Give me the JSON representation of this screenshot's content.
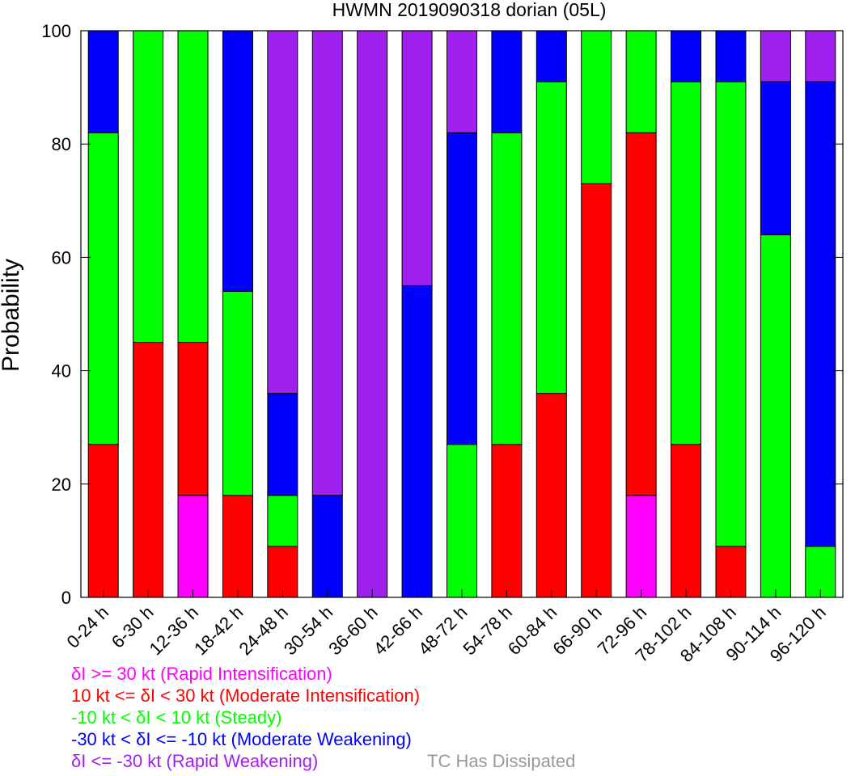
{
  "chart_data": {
    "type": "bar",
    "stacked": true,
    "title": "HWMN 2019090318 dorian (05L)",
    "ylabel": "Probability",
    "xlabel": "",
    "ylim": [
      0,
      100
    ],
    "yticks": [
      0,
      20,
      40,
      60,
      80,
      100
    ],
    "grid": false,
    "legend_position": "bottom-left",
    "categories": [
      "0-24 h",
      "6-30 h",
      "12-36 h",
      "18-42 h",
      "24-48 h",
      "30-54 h",
      "36-60 h",
      "42-66 h",
      "48-72 h",
      "54-78 h",
      "60-84 h",
      "66-90 h",
      "72-96 h",
      "78-102 h",
      "84-108 h",
      "90-114 h",
      "96-120 h"
    ],
    "series": [
      {
        "key": "ri",
        "name": "δI >= 30 kt (Rapid Intensification)",
        "color": "#ff00ff",
        "values": [
          0,
          0,
          18,
          0,
          0,
          0,
          0,
          0,
          0,
          0,
          0,
          0,
          18,
          0,
          0,
          0,
          0
        ]
      },
      {
        "key": "mi",
        "name": "10 kt <= δI < 30 kt (Moderate Intensification)",
        "color": "#ff0000",
        "values": [
          27,
          45,
          27,
          18,
          9,
          0,
          0,
          0,
          0,
          27,
          36,
          73,
          64,
          27,
          9,
          0,
          0
        ]
      },
      {
        "key": "st",
        "name": "-10 kt < δI < 10 kt (Steady)",
        "color": "#00ff00",
        "values": [
          55,
          55,
          55,
          36,
          9,
          0,
          0,
          0,
          27,
          55,
          55,
          27,
          18,
          64,
          82,
          64,
          9
        ]
      },
      {
        "key": "mw",
        "name": "-30 kt < δI <= -10 kt (Moderate Weakening)",
        "color": "#0000ff",
        "values": [
          18,
          0,
          0,
          46,
          18,
          18,
          0,
          55,
          55,
          18,
          9,
          0,
          0,
          9,
          9,
          27,
          82
        ]
      },
      {
        "key": "rw",
        "name": "δI <= -30 kt (Rapid Weakening)",
        "color": "#a020f0",
        "values": [
          0,
          0,
          0,
          0,
          64,
          82,
          100,
          45,
          18,
          0,
          0,
          0,
          0,
          0,
          0,
          9,
          9
        ]
      }
    ],
    "extra_legend": {
      "name": "TC Has Dissipated",
      "color": "#999999"
    }
  }
}
